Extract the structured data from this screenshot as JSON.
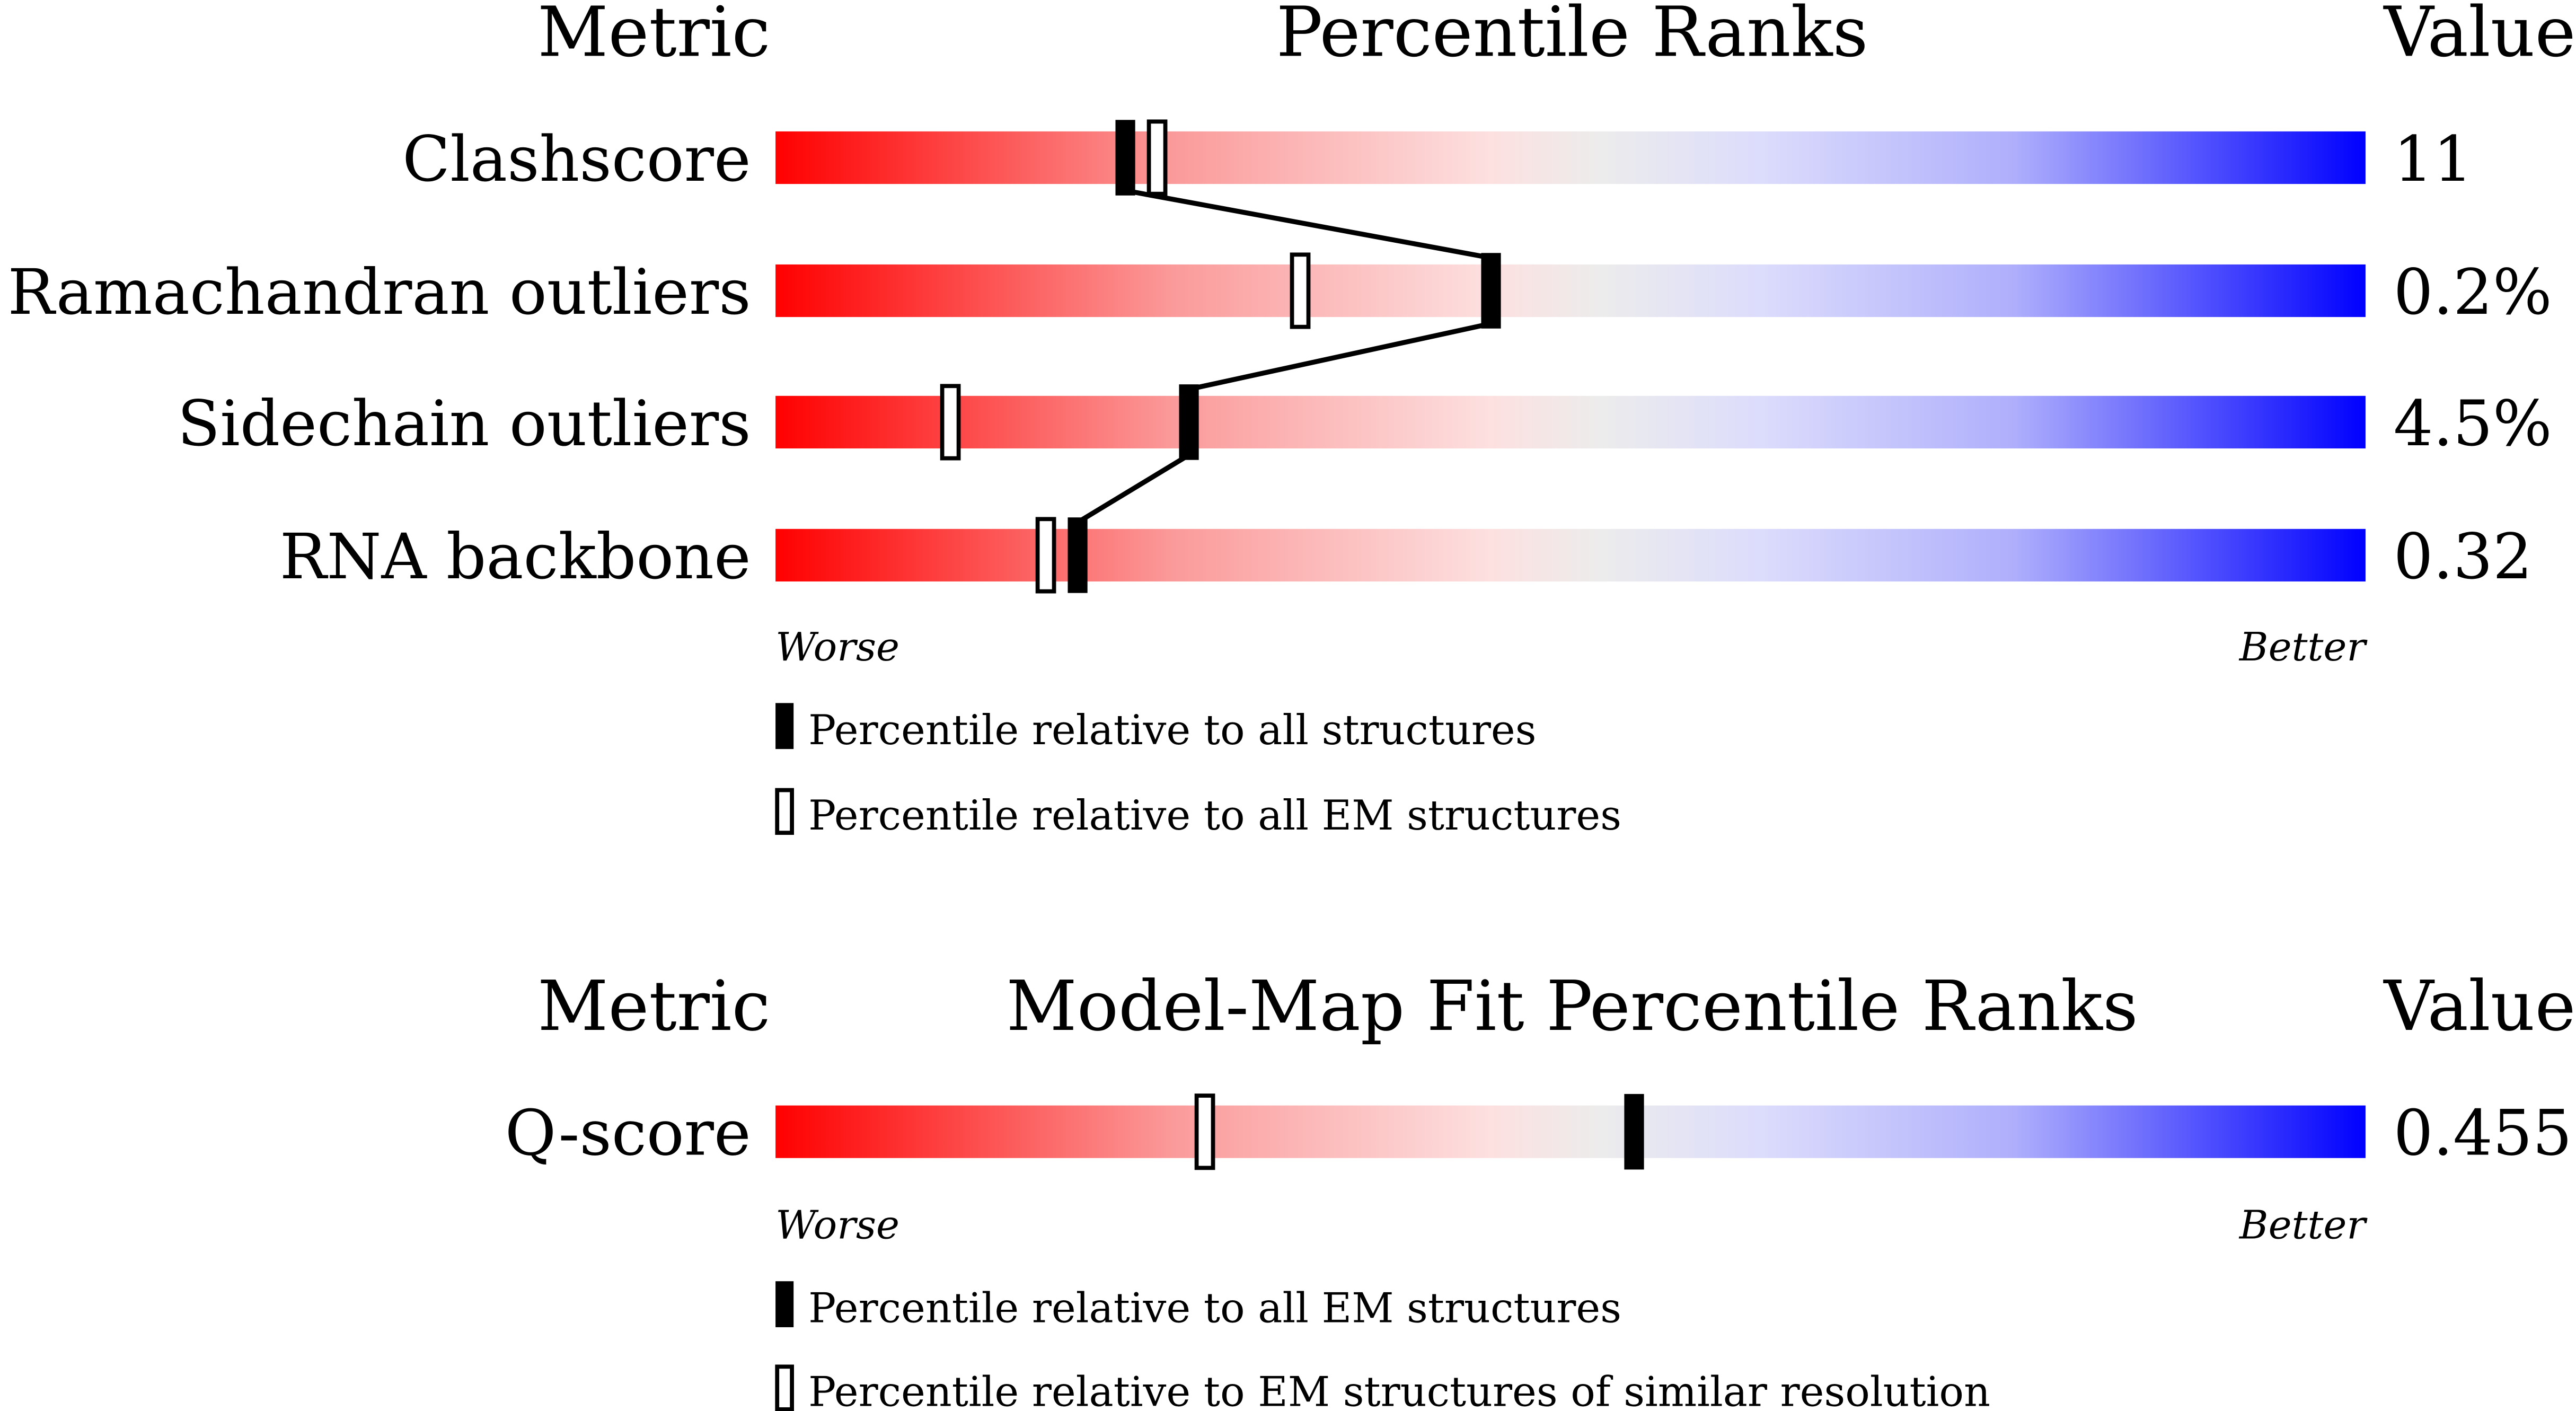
{
  "chart_data": [
    {
      "type": "bar",
      "title": "Percentile Ranks",
      "metric_header": "Metric",
      "value_header": "Value",
      "xlim": [
        0,
        100
      ],
      "worse_label": "Worse",
      "better_label": "Better",
      "rows": [
        {
          "metric": "Clashscore",
          "value": "11",
          "percentile_all": 22,
          "percentile_secondary": 24
        },
        {
          "metric": "Ramachandran outliers",
          "value": "0.2%",
          "percentile_all": 45,
          "percentile_secondary": 33
        },
        {
          "metric": "Sidechain outliers",
          "value": "4.5%",
          "percentile_all": 26,
          "percentile_secondary": 11
        },
        {
          "metric": "RNA backbone",
          "value": "0.32",
          "percentile_all": 19,
          "percentile_secondary": 17
        }
      ],
      "legend": {
        "filled": "Percentile relative to all structures",
        "open": "Percentile relative to all EM structures"
      },
      "connect_filled_markers": true
    },
    {
      "type": "bar",
      "title": "Model-Map Fit Percentile Ranks",
      "metric_header": "Metric",
      "value_header": "Value",
      "xlim": [
        0,
        100
      ],
      "worse_label": "Worse",
      "better_label": "Better",
      "rows": [
        {
          "metric": "Q-score",
          "value": "0.455",
          "percentile_all": 54,
          "percentile_secondary": 27
        }
      ],
      "legend": {
        "filled": "Percentile relative to all EM structures",
        "open": "Percentile relative to EM structures of similar resolution"
      },
      "connect_filled_markers": false
    }
  ],
  "colors": {
    "worse": "#ff0000",
    "mid": "#eeeeee",
    "better": "#0000ff",
    "marker": "#000000"
  }
}
